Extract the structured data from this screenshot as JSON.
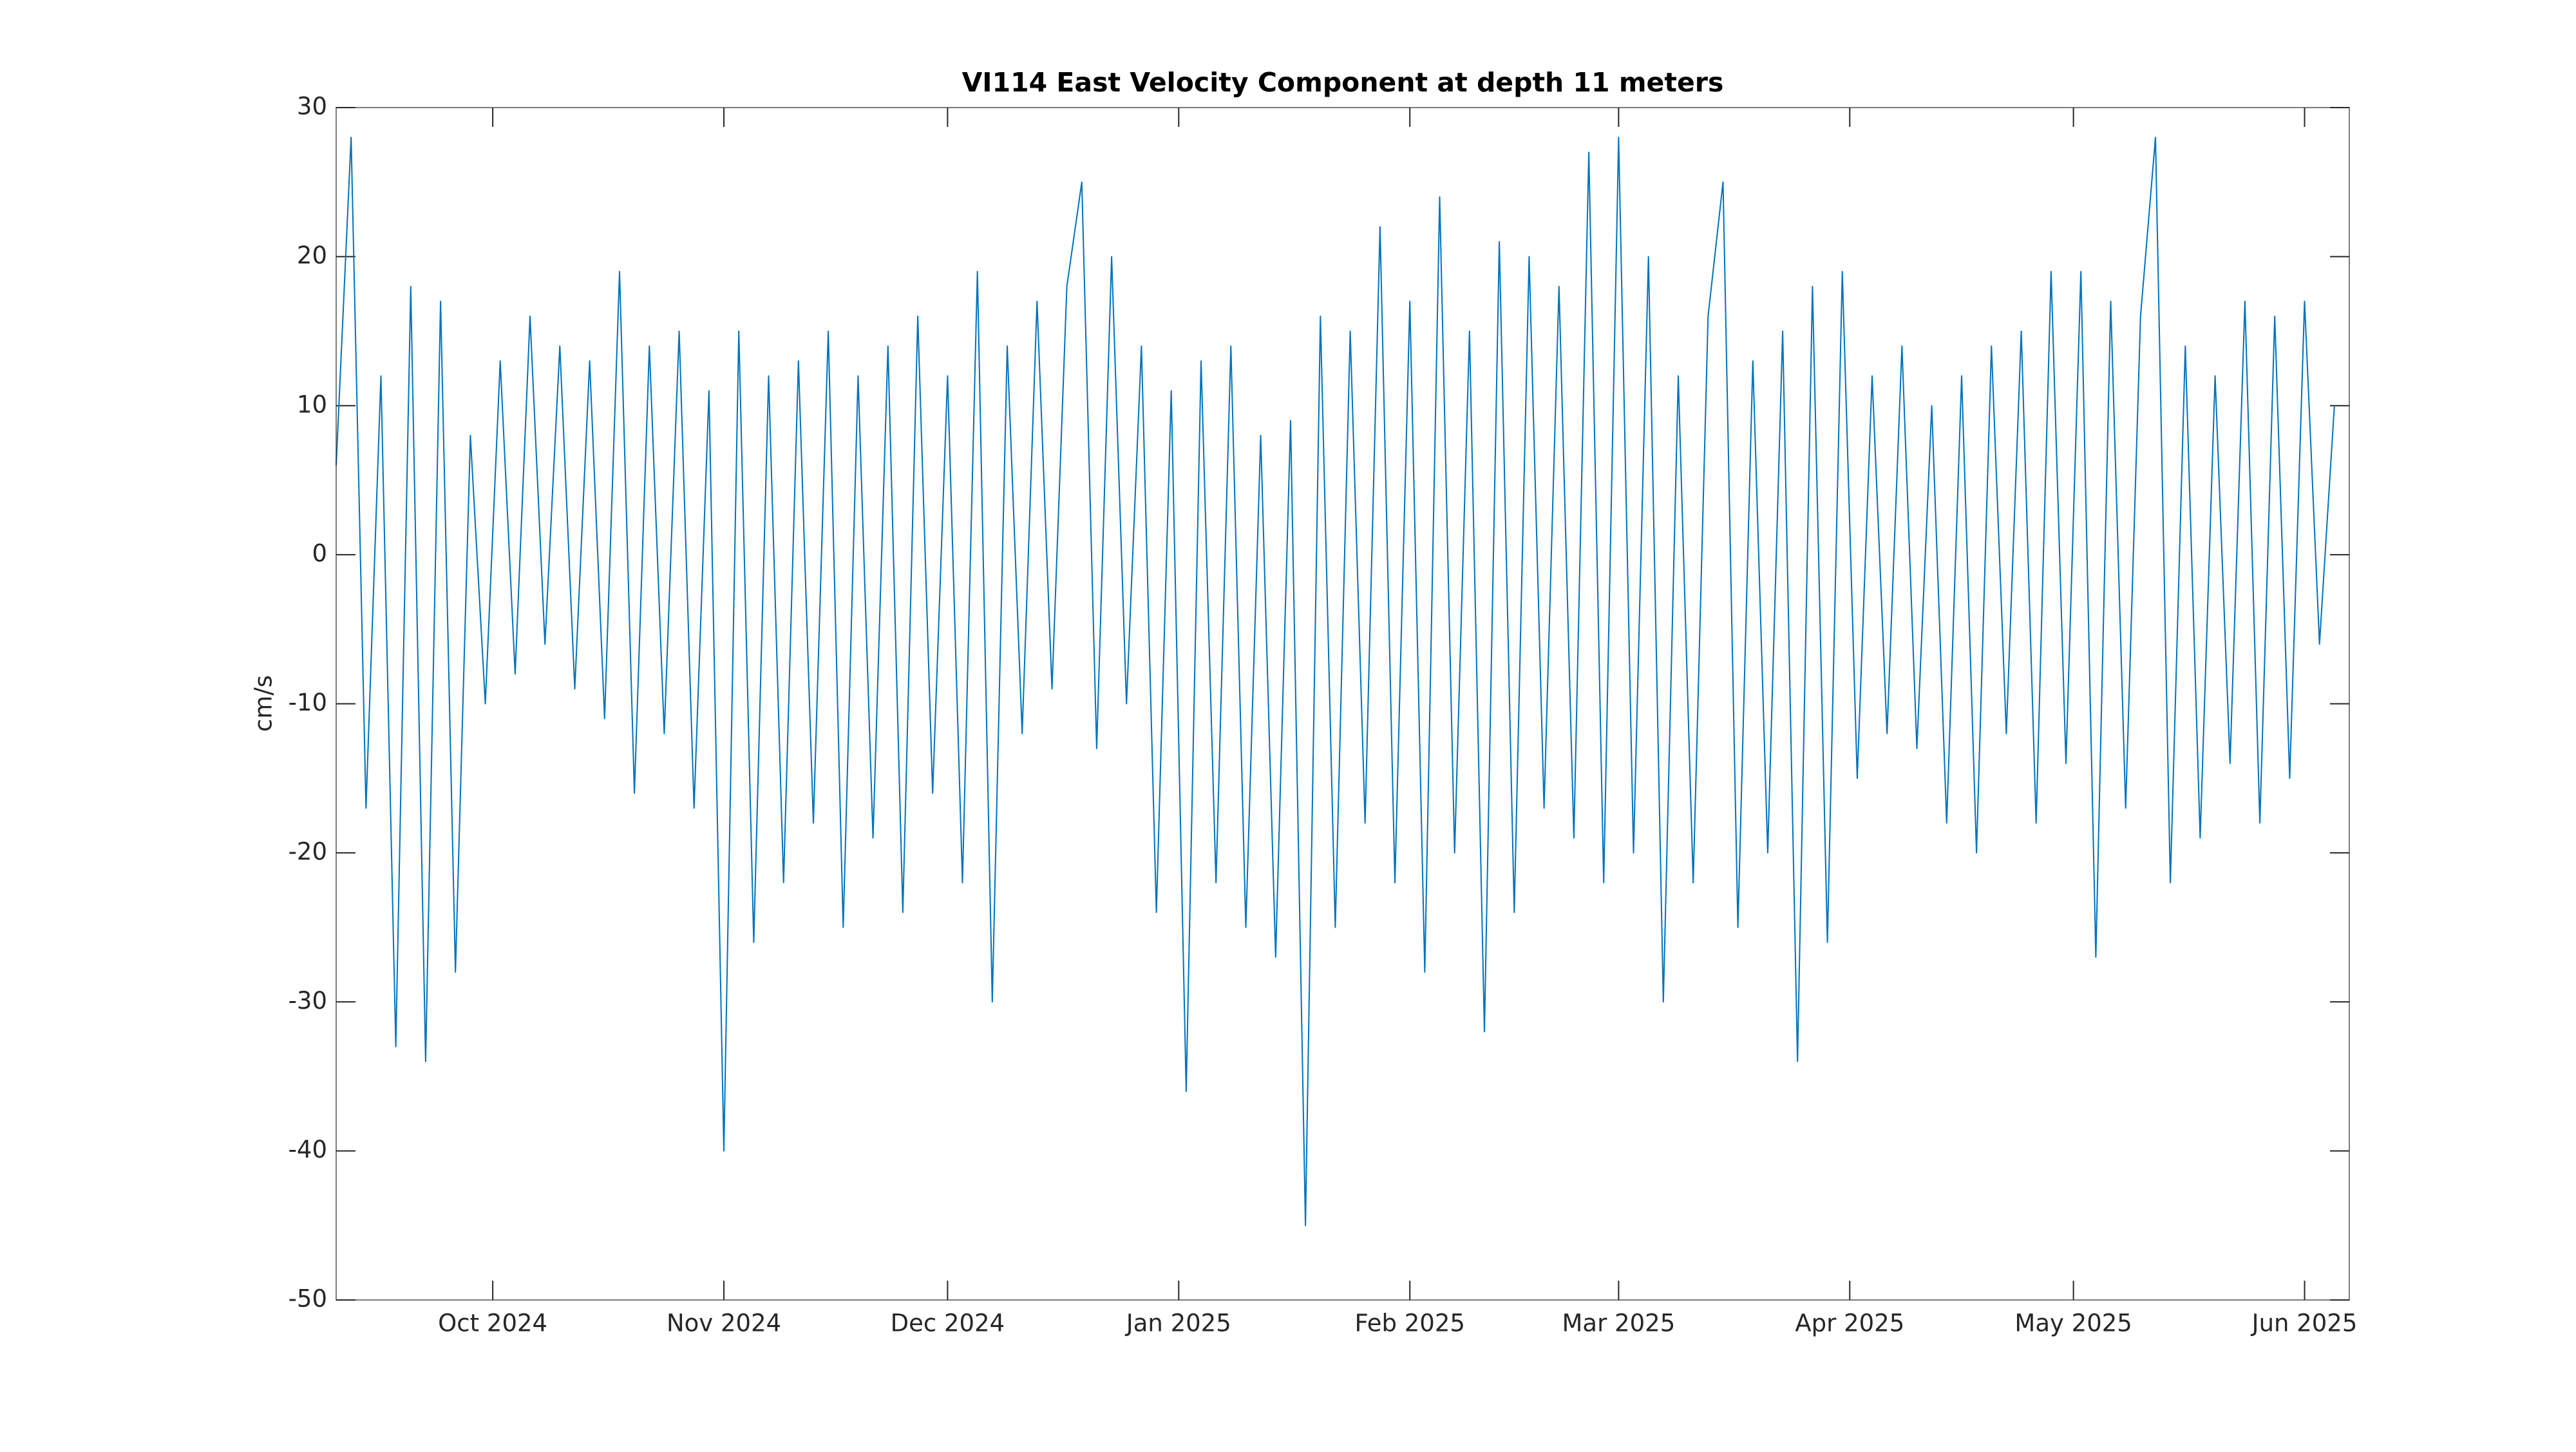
{
  "chart_data": {
    "type": "line",
    "title": "VI114 East Velocity Component at depth 11 meters",
    "ylabel": "cm/s",
    "x": [
      0,
      2,
      4,
      6,
      8,
      10,
      12,
      14,
      16,
      18,
      20,
      22,
      24,
      26,
      28,
      30,
      32,
      34,
      36,
      38,
      40,
      42,
      44,
      46,
      48,
      50,
      52,
      54,
      56,
      58,
      60,
      62,
      64,
      66,
      68,
      70,
      72,
      74,
      76,
      78,
      80,
      82,
      84,
      86,
      88,
      90,
      92,
      94,
      96,
      98,
      100,
      102,
      104,
      106,
      108,
      110,
      112,
      114,
      116,
      118,
      120,
      122,
      124,
      126,
      128,
      130,
      132,
      134,
      136,
      138,
      140,
      142,
      144,
      146,
      148,
      150,
      152,
      154,
      156,
      158,
      160,
      162,
      164,
      166,
      168,
      170,
      172,
      174,
      176,
      178,
      180,
      182,
      184,
      186,
      188,
      190,
      192,
      194,
      196,
      198,
      200,
      202,
      204,
      206,
      208,
      210,
      212,
      214,
      216,
      218,
      220,
      222,
      224,
      226,
      228,
      230,
      232,
      234,
      236,
      238,
      240,
      242,
      244,
      246,
      248,
      250,
      252,
      254,
      256,
      258,
      260,
      262,
      264,
      266,
      268
    ],
    "series": [
      {
        "name": "East Velocity",
        "color": "#0072bd",
        "values": [
          6,
          28,
          -17,
          12,
          -33,
          18,
          -34,
          17,
          -28,
          8,
          -10,
          13,
          -8,
          16,
          -6,
          14,
          -9,
          13,
          -11,
          19,
          -16,
          14,
          -12,
          15,
          -17,
          11,
          -40,
          15,
          -26,
          12,
          -22,
          13,
          -18,
          15,
          -25,
          12,
          -19,
          14,
          -24,
          16,
          -16,
          12,
          -22,
          19,
          -30,
          14,
          -12,
          17,
          -9,
          18,
          25,
          -13,
          20,
          -10,
          14,
          -24,
          11,
          -36,
          13,
          -22,
          14,
          -25,
          8,
          -27,
          9,
          -45,
          16,
          -25,
          15,
          -18,
          22,
          -22,
          17,
          -28,
          24,
          -20,
          15,
          -32,
          21,
          -24,
          20,
          -17,
          18,
          -19,
          27,
          -22,
          28,
          -20,
          20,
          -30,
          12,
          -22,
          16,
          25,
          -25,
          13,
          -20,
          15,
          -34,
          18,
          -26,
          19,
          -15,
          12,
          -12,
          14,
          -13,
          10,
          -18,
          12,
          -20,
          14,
          -12,
          15,
          -18,
          19,
          -14,
          19,
          -27,
          17,
          -17,
          16,
          28,
          -22,
          14,
          -19,
          12,
          -14,
          17,
          -18,
          16,
          -15,
          17,
          -6,
          10
        ]
      }
    ],
    "xlim": [
      0,
      270
    ],
    "xticks": [
      {
        "value": 21,
        "label": "Oct 2024"
      },
      {
        "value": 52,
        "label": "Nov 2024"
      },
      {
        "value": 82,
        "label": "Dec 2024"
      },
      {
        "value": 113,
        "label": "Jan 2025"
      },
      {
        "value": 144,
        "label": "Feb 2025"
      },
      {
        "value": 172,
        "label": "Mar 2025"
      },
      {
        "value": 203,
        "label": "Apr 2025"
      },
      {
        "value": 233,
        "label": "May 2025"
      },
      {
        "value": 264,
        "label": "Jun 2025"
      }
    ],
    "ylim": [
      -50,
      30
    ],
    "yticks": [
      -50,
      -40,
      -30,
      -20,
      -10,
      0,
      10,
      20,
      30
    ]
  }
}
